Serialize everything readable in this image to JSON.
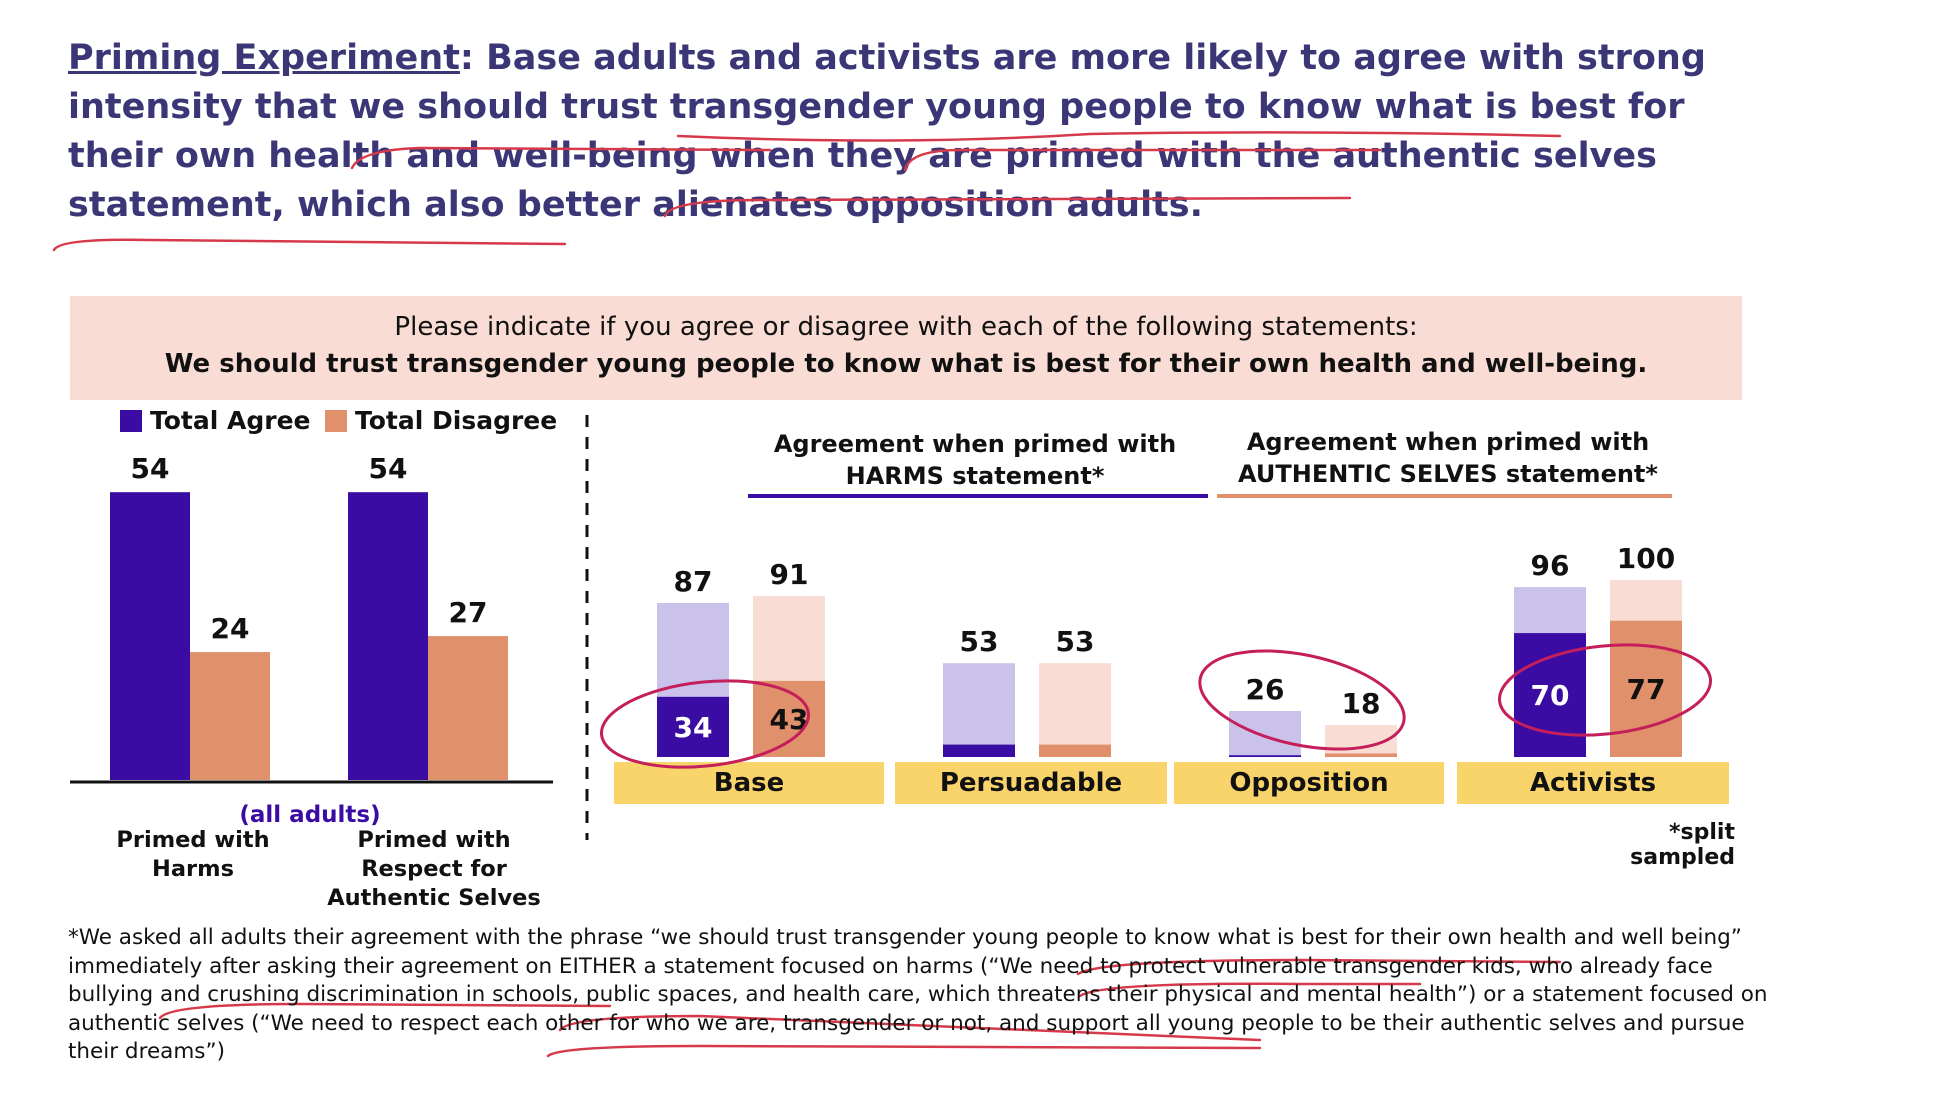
{
  "headline": {
    "lead": "Priming Experiment",
    "text": ": Base adults and activists are more likely to agree with strong intensity that we should trust transgender young people to know what is best for their own health and well-being when they are primed with the authentic selves statement, which also better alienates opposition adults."
  },
  "question": {
    "line1": "Please indicate if you agree or disagree with each of the following statements:",
    "line2": "We should trust transgender young people to know what is best for their own health and well-being."
  },
  "legend": {
    "agree": "Total Agree",
    "disagree": "Total Disagree"
  },
  "colors": {
    "agree": "#3a0ca3",
    "disagree": "#e0906b",
    "harms_light": "#cbc2ec",
    "authentic_light": "#f9dcd3",
    "category_bg": "#f8d46a",
    "annotation": "#c41e5b"
  },
  "chart_data": [
    {
      "type": "bar",
      "xlabel": "(all adults)",
      "categories": [
        "Primed with Harms",
        "Primed with Respect for Authentic Selves"
      ],
      "series": [
        {
          "name": "Total Agree",
          "values": [
            54,
            54
          ]
        },
        {
          "name": "Total Disagree",
          "values": [
            24,
            27
          ]
        }
      ],
      "legend_position": "top"
    },
    {
      "type": "bar",
      "categories": [
        "Base",
        "Persuadable",
        "Opposition",
        "Activists"
      ],
      "group_headers": {
        "harms": "Agreement when primed with HARMS statement*",
        "authentic": "Agreement when primed with AUTHENTIC SELVES statement*"
      },
      "series": [
        {
          "name": "HARMS statement",
          "total": [
            87,
            53,
            26,
            96
          ],
          "strong": [
            34,
            7,
            1,
            70
          ],
          "strong_labels": [
            "34",
            "",
            "",
            "70"
          ]
        },
        {
          "name": "AUTHENTIC SELVES statement",
          "total": [
            91,
            53,
            18,
            100
          ],
          "strong": [
            43,
            7,
            2,
            77
          ],
          "strong_labels": [
            "43",
            "",
            "",
            "77"
          ]
        }
      ],
      "note": "*split sampled"
    }
  ],
  "footnote": "*We asked all adults their agreement with the phrase “we should trust transgender young people to know what is best for their own health and well being” immediately after asking their agreement on EITHER a statement focused on harms (“We need to protect vulnerable transgender kids, who already face bullying and crushing discrimination in schools, public spaces, and health care, which threatens their physical and mental health”) or a statement focused on authentic selves (“We need to respect each other for who we are, transgender or not, and support all  young people to be their authentic selves and pursue their dreams”)"
}
